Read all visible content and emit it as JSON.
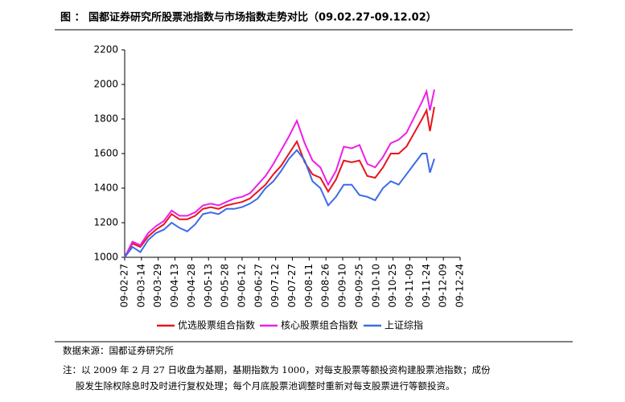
{
  "chart_data": {
    "type": "line",
    "title": "图 ： 国都证券研究所股票池指数与市场指数走势对比（09.02.27-09.12.02）",
    "x": [
      "09-02-27",
      "09-03-06",
      "09-03-13",
      "09-03-20",
      "09-03-27",
      "09-04-03",
      "09-04-10",
      "09-04-17",
      "09-04-24",
      "09-05-01",
      "09-05-08",
      "09-05-15",
      "09-05-22",
      "09-05-29",
      "09-06-05",
      "09-06-12",
      "09-06-19",
      "09-06-26",
      "09-07-03",
      "09-07-10",
      "09-07-17",
      "09-07-24",
      "09-07-31",
      "09-08-07",
      "09-08-14",
      "09-08-21",
      "09-08-28",
      "09-09-04",
      "09-09-11",
      "09-09-18",
      "09-09-25",
      "09-10-02",
      "09-10-09",
      "09-10-16",
      "09-10-23",
      "09-10-30",
      "09-11-06",
      "09-11-13",
      "09-11-20",
      "09-11-24",
      "09-11-27",
      "09-12-01"
    ],
    "series": [
      {
        "name": "优选股票组合指数",
        "color": "#e8141c",
        "values": [
          1000,
          1080,
          1060,
          1120,
          1160,
          1190,
          1250,
          1220,
          1220,
          1240,
          1280,
          1290,
          1280,
          1300,
          1310,
          1320,
          1340,
          1380,
          1420,
          1480,
          1530,
          1600,
          1670,
          1550,
          1480,
          1460,
          1380,
          1450,
          1560,
          1550,
          1560,
          1470,
          1460,
          1520,
          1600,
          1600,
          1640,
          1720,
          1800,
          1850,
          1730,
          1870
        ]
      },
      {
        "name": "核心股票组合指数",
        "color": "#ee1ee8",
        "values": [
          1000,
          1090,
          1070,
          1140,
          1180,
          1210,
          1270,
          1240,
          1240,
          1260,
          1300,
          1310,
          1300,
          1320,
          1340,
          1350,
          1370,
          1420,
          1470,
          1540,
          1620,
          1700,
          1790,
          1660,
          1560,
          1520,
          1420,
          1500,
          1640,
          1630,
          1650,
          1540,
          1520,
          1580,
          1660,
          1680,
          1720,
          1810,
          1900,
          1960,
          1850,
          1970
        ]
      },
      {
        "name": "上证综指",
        "color": "#3b6be8",
        "values": [
          1000,
          1060,
          1030,
          1100,
          1140,
          1160,
          1200,
          1170,
          1150,
          1190,
          1250,
          1260,
          1250,
          1280,
          1280,
          1290,
          1310,
          1340,
          1400,
          1440,
          1500,
          1570,
          1620,
          1560,
          1440,
          1400,
          1300,
          1350,
          1420,
          1420,
          1360,
          1350,
          1330,
          1400,
          1440,
          1420,
          1480,
          1540,
          1600,
          1600,
          1490,
          1570
        ]
      }
    ],
    "xlim": [
      "09-02-27",
      "09-12-24"
    ],
    "xticks": [
      "09-02-27",
      "09-03-14",
      "09-03-29",
      "09-04-13",
      "09-04-28",
      "09-05-13",
      "09-05-28",
      "09-06-12",
      "09-06-27",
      "09-07-12",
      "09-07-27",
      "09-08-11",
      "09-08-26",
      "09-09-10",
      "09-09-25",
      "09-10-10",
      "09-10-25",
      "09-11-09",
      "09-11-24",
      "09-12-09",
      "09-12-24"
    ],
    "ylim": [
      1000,
      2200
    ],
    "yticks": [
      1000,
      1200,
      1400,
      1600,
      1800,
      2000,
      2200
    ],
    "legend": "bottom",
    "source": "数据来源：国都证券研究所",
    "note": [
      "注：以 2009 年 2 月 27 日收盘为基期，基期指数为 1000，对每支股票等额投资构建股票池指数；成份",
      "股发生除权除息时及时进行复权处理；每个月底股票池调整时重新对每支股票进行等额投资。"
    ]
  }
}
